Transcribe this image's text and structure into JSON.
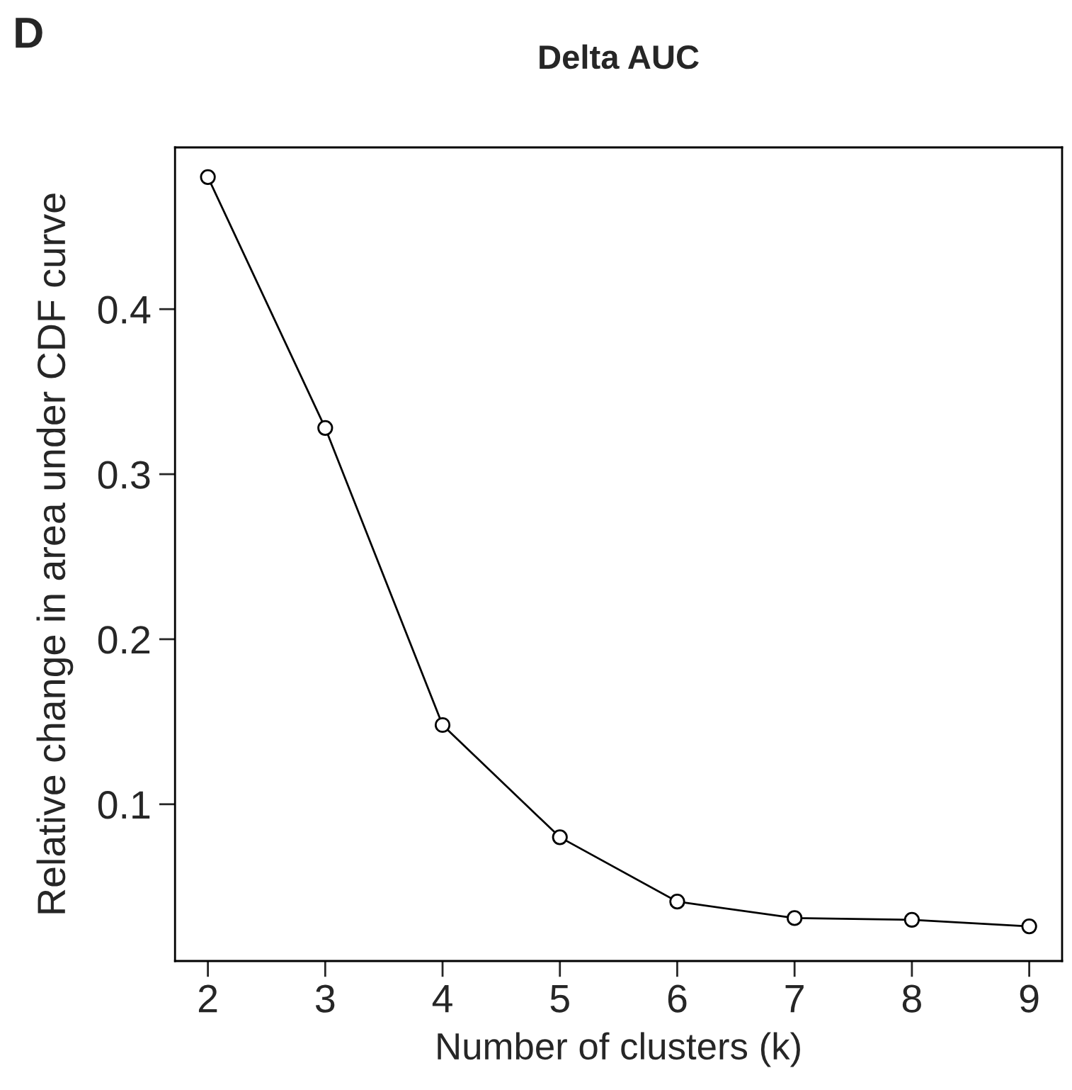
{
  "chart_data": {
    "type": "line",
    "title": "Delta AUC",
    "xlabel": "Number of clusters (k)",
    "ylabel": "Relative change in area under CDF curve",
    "annotations": [
      "D"
    ],
    "x": [
      2,
      3,
      4,
      5,
      6,
      7,
      8,
      9
    ],
    "series": [
      {
        "color": "#000000",
        "values": [
          0.48,
          0.328,
          0.148,
          0.08,
          0.041,
          0.031,
          0.03,
          0.026
        ]
      }
    ],
    "xlim": [
      1.72,
      9.28
    ],
    "xticks": [
      2,
      3,
      4,
      5,
      6,
      7,
      8,
      9
    ],
    "ylim": [
      0.005,
      0.498
    ],
    "yticks": [
      0.1,
      0.2,
      0.3,
      0.4
    ],
    "marker": "circle",
    "line_style": "solid"
  }
}
